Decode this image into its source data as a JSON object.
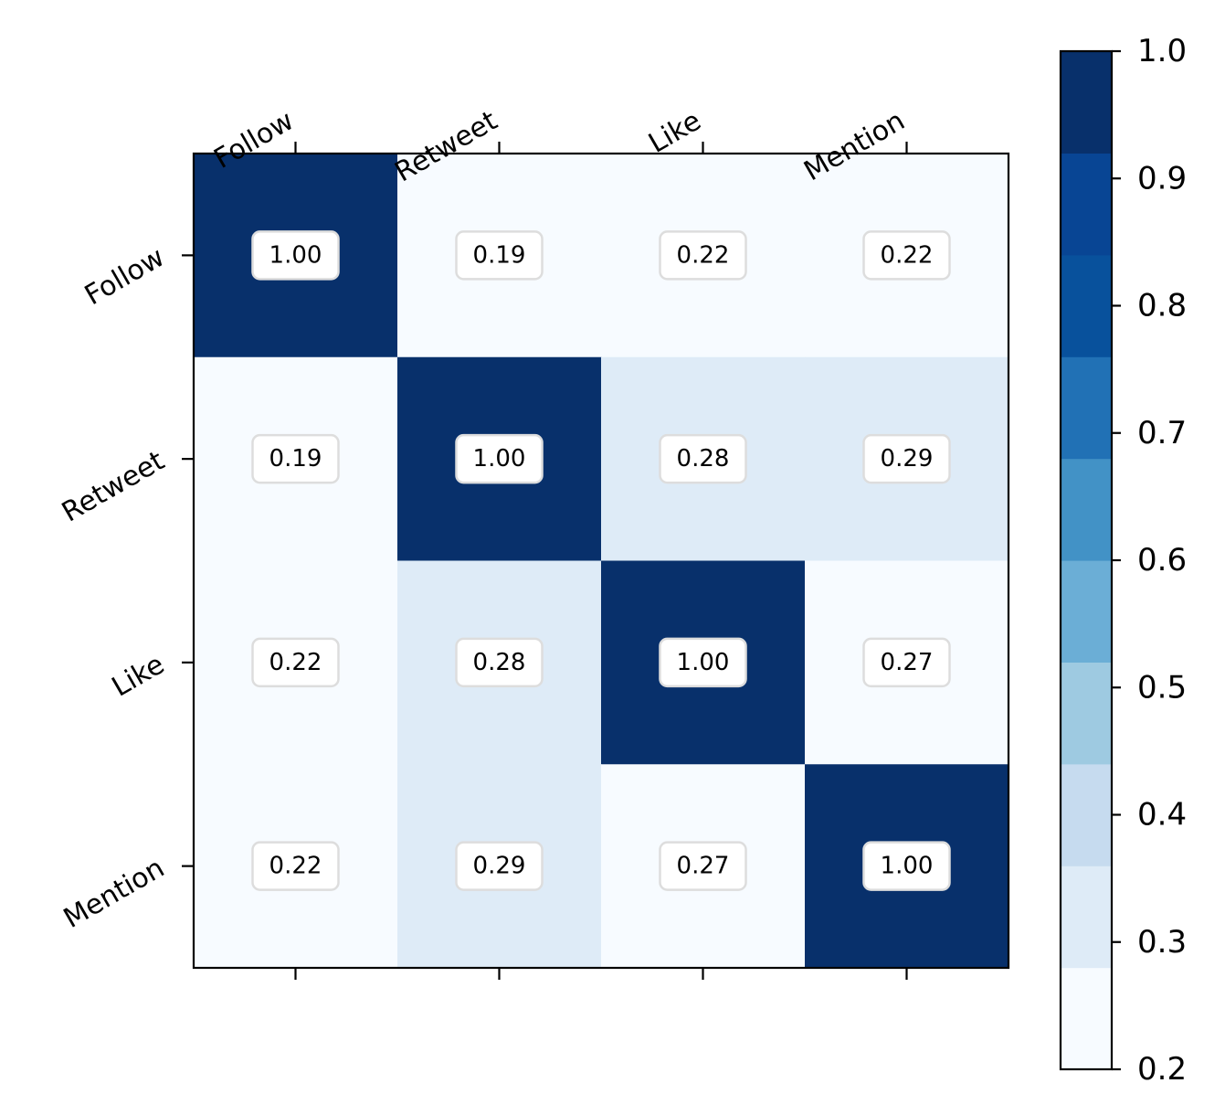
{
  "chart_data": {
    "type": "heatmap",
    "x_labels": [
      "Follow",
      "Retweet",
      "Like",
      "Mention"
    ],
    "y_labels": [
      "Follow",
      "Retweet",
      "Like",
      "Mention"
    ],
    "values": [
      [
        1.0,
        0.19,
        0.22,
        0.22
      ],
      [
        0.19,
        1.0,
        0.28,
        0.29
      ],
      [
        0.22,
        0.28,
        1.0,
        0.27
      ],
      [
        0.22,
        0.29,
        0.27,
        1.0
      ]
    ],
    "cell_labels": [
      [
        "1.00",
        "0.19",
        "0.22",
        "0.22"
      ],
      [
        "0.19",
        "1.00",
        "0.28",
        "0.29"
      ],
      [
        "0.22",
        "0.28",
        "1.00",
        "0.27"
      ],
      [
        "0.22",
        "0.29",
        "0.27",
        "1.00"
      ]
    ],
    "x_axis_position": "top",
    "colormap": {
      "name": "Blues",
      "vmin": 0.2,
      "vmax": 1.0,
      "levels": 10,
      "colors": [
        "#f7fbff",
        "#deebf7",
        "#c6dbef",
        "#9ecae1",
        "#6baed6",
        "#4292c6",
        "#2171b5",
        "#08519c",
        "#084594",
        "#08306b"
      ],
      "ticks": [
        "0.2",
        "0.3",
        "0.4",
        "0.5",
        "0.6",
        "0.7",
        "0.8",
        "0.9",
        "1.0"
      ],
      "tick_values": [
        0.2,
        0.3,
        0.4,
        0.5,
        0.6,
        0.7,
        0.8,
        0.9,
        1.0
      ]
    },
    "colorbar_position": "right",
    "grid": false
  }
}
